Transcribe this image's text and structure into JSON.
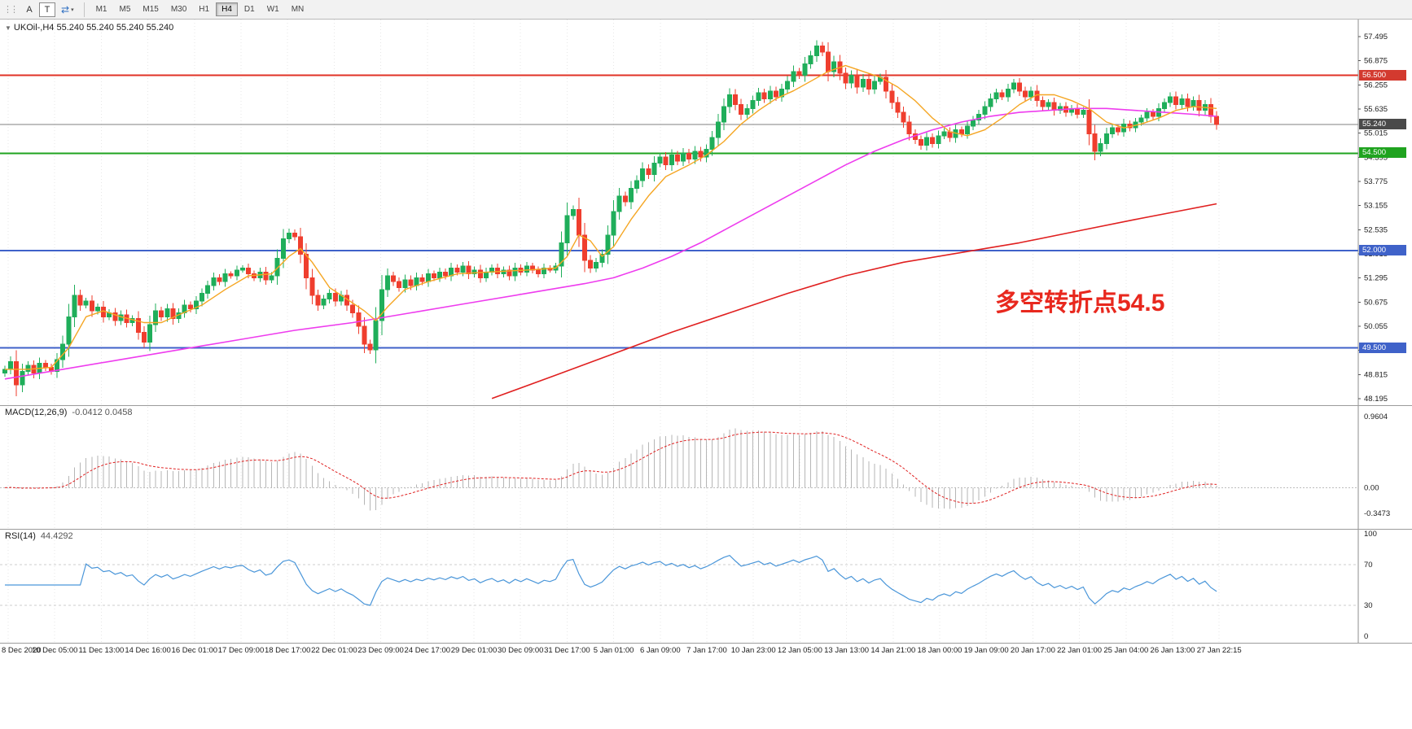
{
  "toolbar": {
    "grip": "⋮⋮",
    "buttons": {
      "annotate": "A",
      "text_tool": "T"
    },
    "cycle_icon": "⇄",
    "caret": "▾",
    "timeframes": [
      "M1",
      "M5",
      "M15",
      "M30",
      "H1",
      "H4",
      "D1",
      "W1",
      "MN"
    ],
    "active_timeframe": "H4"
  },
  "chart": {
    "marker": "▼",
    "symbol_line": "UKOil-,H4 55.240 55.240 55.240 55.240",
    "annotation": {
      "text": "多空转折点54.5",
      "color": "#e8281e"
    },
    "price_axis": {
      "ticks": [
        "57.495",
        "56.875",
        "56.255",
        "55.635",
        "55.015",
        "54.395",
        "53.775",
        "53.155",
        "52.535",
        "51.915",
        "51.295",
        "50.675",
        "50.055",
        "49.435",
        "48.815",
        "48.195"
      ],
      "badges": [
        {
          "value": "56.500",
          "price": 56.5,
          "color": "#d33a2f"
        },
        {
          "value": "55.240",
          "price": 55.24,
          "color": "#4a4a4a"
        },
        {
          "value": "54.500",
          "price": 54.5,
          "color": "#1fa31f"
        },
        {
          "value": "52.000",
          "price": 52.0,
          "color": "#3f62c9"
        },
        {
          "value": "49.500",
          "price": 49.5,
          "color": "#3f62c9"
        }
      ]
    }
  },
  "macd_panel": {
    "label": "MACD(12,26,9)",
    "values": "-0.0412 0.0458",
    "axis_labels": [
      {
        "value": "0.9604",
        "level": 0.9604
      },
      {
        "value": "0.00",
        "level": 0
      },
      {
        "value": "-0.3473",
        "level": -0.3473
      }
    ]
  },
  "rsi_panel": {
    "label": "RSI(14)",
    "value": "44.4292",
    "axis_labels": [
      {
        "value": "100",
        "level": 100
      },
      {
        "value": "70",
        "level": 70
      },
      {
        "value": "30",
        "level": 30
      },
      {
        "value": "0",
        "level": 0
      }
    ],
    "dashed_levels": [
      70,
      30
    ]
  },
  "time_axis": {
    "labels": [
      "8 Dec 2020",
      "10 Dec 05:00",
      "11 Dec 13:00",
      "14 Dec 16:00",
      "16 Dec 01:00",
      "17 Dec 09:00",
      "18 Dec 17:00",
      "22 Dec 01:00",
      "23 Dec 09:00",
      "24 Dec 17:00",
      "29 Dec 01:00",
      "30 Dec 09:00",
      "31 Dec 17:00",
      "5 Jan 01:00",
      "6 Jan 09:00",
      "7 Jan 17:00",
      "10 Jan 23:00",
      "12 Jan 05:00",
      "13 Jan 13:00",
      "14 Jan 21:00",
      "18 Jan 00:00",
      "19 Jan 09:00",
      "20 Jan 17:00",
      "22 Jan 01:00",
      "25 Jan 04:00",
      "26 Jan 13:00",
      "27 Jan 22:15"
    ]
  },
  "chart_data": {
    "type": "candlestick",
    "title": "UKOil-,H4",
    "symbol": "UKOil-",
    "timeframe": "H4",
    "price_range": [
      48.195,
      57.495
    ],
    "current_price": 55.24,
    "hlines": [
      {
        "price": 56.5,
        "color": "#e03226",
        "width": 2
      },
      {
        "price": 54.5,
        "color": "#1fa31f",
        "width": 2
      },
      {
        "price": 52.0,
        "color": "#3f62c9",
        "width": 2
      },
      {
        "price": 49.5,
        "color": "#3f62c9",
        "width": 2
      }
    ],
    "colors": {
      "bull": "#1fae5a",
      "bear": "#ef3e2e",
      "ma_fast": "#f5a623",
      "ma_mid": "#ee3cee",
      "ma_slow": "#e02020",
      "macd_hist": "#b6b6b6",
      "macd_signal": "#e02020",
      "rsi_line": "#4a96d9",
      "current_price_line": "#808080"
    },
    "closes": [
      48.95,
      49.15,
      48.55,
      48.9,
      49.05,
      48.85,
      49.1,
      49.0,
      48.9,
      49.2,
      49.6,
      50.3,
      50.85,
      50.6,
      50.7,
      50.45,
      50.55,
      50.3,
      50.4,
      50.2,
      50.35,
      50.15,
      50.25,
      49.9,
      49.65,
      50.1,
      50.45,
      50.3,
      50.5,
      50.25,
      50.4,
      50.6,
      50.5,
      50.7,
      50.9,
      51.1,
      51.3,
      51.2,
      51.4,
      51.35,
      51.5,
      51.55,
      51.4,
      51.3,
      51.45,
      51.25,
      51.35,
      51.8,
      52.3,
      52.45,
      52.35,
      51.9,
      51.3,
      50.85,
      50.6,
      50.75,
      50.9,
      50.7,
      50.85,
      50.6,
      50.4,
      50.05,
      49.6,
      49.45,
      50.2,
      51.0,
      51.35,
      51.2,
      51.05,
      51.25,
      51.1,
      51.3,
      51.2,
      51.4,
      51.3,
      51.45,
      51.35,
      51.55,
      51.45,
      51.6,
      51.4,
      51.5,
      51.3,
      51.45,
      51.55,
      51.4,
      51.5,
      51.35,
      51.55,
      51.45,
      51.6,
      51.5,
      51.4,
      51.55,
      51.5,
      51.6,
      52.2,
      52.9,
      53.05,
      52.4,
      51.75,
      51.55,
      51.7,
      51.9,
      52.4,
      53.0,
      53.4,
      53.25,
      53.6,
      53.8,
      54.1,
      53.95,
      54.25,
      54.4,
      54.2,
      54.45,
      54.3,
      54.5,
      54.35,
      54.55,
      54.4,
      54.6,
      54.9,
      55.3,
      55.7,
      56.0,
      55.75,
      55.5,
      55.65,
      55.85,
      56.05,
      55.9,
      56.1,
      55.95,
      56.15,
      56.35,
      56.6,
      56.5,
      56.8,
      57.0,
      57.25,
      57.1,
      56.6,
      56.85,
      56.55,
      56.3,
      56.5,
      56.2,
      56.4,
      56.15,
      56.35,
      56.45,
      56.1,
      55.8,
      55.55,
      55.3,
      55.0,
      54.85,
      54.7,
      54.9,
      54.75,
      54.95,
      55.05,
      54.9,
      55.1,
      55.0,
      55.2,
      55.35,
      55.5,
      55.7,
      55.9,
      56.05,
      55.95,
      56.15,
      56.3,
      56.1,
      55.95,
      56.1,
      55.85,
      55.7,
      55.8,
      55.6,
      55.7,
      55.55,
      55.65,
      55.5,
      55.6,
      55.0,
      54.55,
      54.75,
      55.0,
      55.15,
      55.05,
      55.25,
      55.15,
      55.3,
      55.4,
      55.55,
      55.45,
      55.65,
      55.8,
      55.95,
      55.75,
      55.9,
      55.7,
      55.85,
      55.6,
      55.75,
      55.45,
      55.24
    ],
    "ma_fast_points": [
      [
        0,
        48.95
      ],
      [
        4,
        48.95
      ],
      [
        8,
        49.0
      ],
      [
        11,
        49.5
      ],
      [
        14,
        50.3
      ],
      [
        17,
        50.45
      ],
      [
        20,
        50.3
      ],
      [
        24,
        50.15
      ],
      [
        27,
        50.15
      ],
      [
        30,
        50.35
      ],
      [
        34,
        50.6
      ],
      [
        38,
        51.0
      ],
      [
        42,
        51.35
      ],
      [
        46,
        51.4
      ],
      [
        49,
        51.85
      ],
      [
        51,
        52.05
      ],
      [
        53,
        51.7
      ],
      [
        56,
        51.05
      ],
      [
        59,
        50.75
      ],
      [
        62,
        50.45
      ],
      [
        64,
        50.2
      ],
      [
        66,
        50.55
      ],
      [
        69,
        51.0
      ],
      [
        73,
        51.2
      ],
      [
        78,
        51.4
      ],
      [
        84,
        51.45
      ],
      [
        90,
        51.5
      ],
      [
        95,
        51.55
      ],
      [
        97,
        51.85
      ],
      [
        99,
        52.4
      ],
      [
        101,
        52.25
      ],
      [
        103,
        51.85
      ],
      [
        105,
        52.1
      ],
      [
        108,
        52.8
      ],
      [
        111,
        53.4
      ],
      [
        114,
        53.9
      ],
      [
        118,
        54.2
      ],
      [
        121,
        54.45
      ],
      [
        124,
        54.8
      ],
      [
        127,
        55.25
      ],
      [
        130,
        55.6
      ],
      [
        133,
        55.9
      ],
      [
        136,
        56.1
      ],
      [
        139,
        56.35
      ],
      [
        142,
        56.6
      ],
      [
        145,
        56.75
      ],
      [
        148,
        56.6
      ],
      [
        151,
        56.45
      ],
      [
        154,
        56.2
      ],
      [
        157,
        55.85
      ],
      [
        160,
        55.4
      ],
      [
        163,
        55.05
      ],
      [
        166,
        54.95
      ],
      [
        169,
        55.1
      ],
      [
        172,
        55.4
      ],
      [
        175,
        55.75
      ],
      [
        178,
        56.0
      ],
      [
        181,
        56.0
      ],
      [
        184,
        55.85
      ],
      [
        187,
        55.65
      ],
      [
        190,
        55.3
      ],
      [
        193,
        55.15
      ],
      [
        196,
        55.25
      ],
      [
        199,
        55.4
      ],
      [
        202,
        55.6
      ],
      [
        205,
        55.7
      ],
      [
        209,
        55.65
      ]
    ],
    "ma_mid_points": [
      [
        0,
        48.7
      ],
      [
        10,
        48.95
      ],
      [
        20,
        49.2
      ],
      [
        30,
        49.45
      ],
      [
        40,
        49.7
      ],
      [
        50,
        49.95
      ],
      [
        60,
        50.15
      ],
      [
        70,
        50.4
      ],
      [
        80,
        50.65
      ],
      [
        90,
        50.9
      ],
      [
        100,
        51.15
      ],
      [
        105,
        51.3
      ],
      [
        110,
        51.55
      ],
      [
        115,
        51.85
      ],
      [
        120,
        52.2
      ],
      [
        125,
        52.6
      ],
      [
        130,
        53.0
      ],
      [
        135,
        53.4
      ],
      [
        140,
        53.8
      ],
      [
        145,
        54.2
      ],
      [
        150,
        54.55
      ],
      [
        155,
        54.85
      ],
      [
        160,
        55.1
      ],
      [
        165,
        55.3
      ],
      [
        170,
        55.45
      ],
      [
        175,
        55.55
      ],
      [
        180,
        55.6
      ],
      [
        185,
        55.65
      ],
      [
        190,
        55.65
      ],
      [
        195,
        55.6
      ],
      [
        200,
        55.55
      ],
      [
        205,
        55.5
      ],
      [
        209,
        55.45
      ]
    ],
    "ma_slow_points": [
      [
        84,
        48.2
      ],
      [
        95,
        48.8
      ],
      [
        105,
        49.35
      ],
      [
        115,
        49.9
      ],
      [
        125,
        50.4
      ],
      [
        135,
        50.9
      ],
      [
        145,
        51.35
      ],
      [
        155,
        51.7
      ],
      [
        165,
        51.95
      ],
      [
        175,
        52.2
      ],
      [
        185,
        52.5
      ],
      [
        195,
        52.8
      ],
      [
        202,
        53.0
      ],
      [
        209,
        53.2
      ]
    ],
    "macd_range": [
      -0.3473,
      0.9604
    ],
    "rsi_range": [
      0,
      100
    ]
  }
}
